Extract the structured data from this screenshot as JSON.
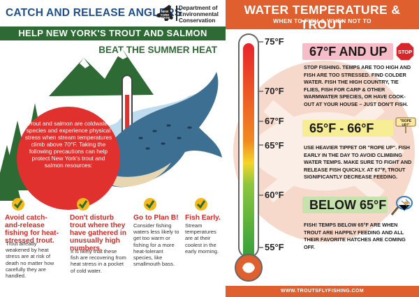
{
  "left": {
    "title": "CATCH AND RELEASE ANGLERS",
    "logo": {
      "state_text": "NEW YORK STATE",
      "agency_line1": "Department of",
      "agency_line2": "Environmental",
      "agency_line3": "Conservation"
    },
    "banner": "HELP NEW YORK'S TROUT AND SALMON",
    "subbanner": "BEAT THE SUMMER HEAT",
    "callout": "Trout and salmon are coldwater species and experience physical stress when stream temperatures climb above 70°F. Taking the following precautions can help protect New York's trout and salmon resources:",
    "tips": [
      {
        "head": "Avoid catch-and-release fishing for heat-stressed trout.",
        "body": "Trout already weakened by heat stress are at risk of death no matter how carefully they are handled."
      },
      {
        "head": "Don't disturb trout where they have gathered in unusually high numbers.",
        "body": "It is likely that these fish are recovering from heat stress in a pocket of cold water."
      },
      {
        "head": "Go to Plan B!",
        "body": "Consider fishing waters less likely to get too warm or fishing for a more heat-tolerant species, like smallmouth bass."
      },
      {
        "head": "Fish Early.",
        "body": "Stream temperatures are at their coolest in the early morning."
      }
    ],
    "colors": {
      "title_blue": "#1e4f8c",
      "banner_green": "#2e6b34",
      "callout_red": "#e0312e",
      "check_yellow": "#f5b819"
    }
  },
  "right": {
    "title": "WATER TEMPERATURE & TROUT",
    "subtitle": "WHEN TO FISH & WHEN NOT TO",
    "footer": "WWW.TROUTSFLYFISHING.COM",
    "temperatures": [
      "75°F",
      "70°F",
      "67°F",
      "65°F",
      "60°F",
      "55°F"
    ],
    "ranges": [
      {
        "label": "67°F AND UP",
        "desc": "Stop fishing. Temps are too high and fish are too stressed. Find colder water. Fish the high country, tie flies, fish for carp & other warmwater species, or have cook-out at your house – just don't fish.",
        "color": "#f6bcc7",
        "icon": "stop-sign-icon",
        "icon_text": "STOP"
      },
      {
        "label": "65°F - 66°F",
        "desc": "Use heavier tippet or \"rope up\". Fish early in the day to avoid climbing water temps. Make sure to fight and release fish quickly. At 67°F, trout significantly decrease feeding.",
        "color": "#f7ed95",
        "icon": "rope-up-sign-icon",
        "icon_text": "\"ROPE UP!\""
      },
      {
        "label": "BELOW 65°F",
        "desc": "Fish! Temps below 65°F are when trout are happily feeding and all their favorite hatches are coming off.",
        "color": "#c8e2ae",
        "icon": "landing-net-icon"
      }
    ],
    "colors": {
      "header_orange": "#e05f2e",
      "thermo_red": "#e8242a",
      "thermo_green": "#2f9e3a"
    }
  }
}
